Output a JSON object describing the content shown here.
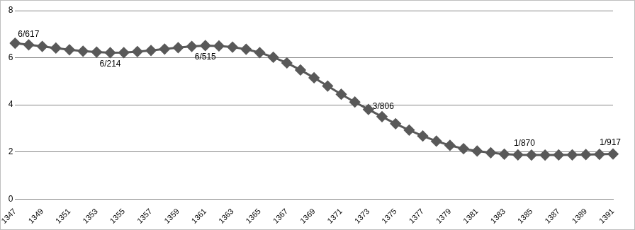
{
  "chart_data": {
    "type": "line",
    "x": [
      1347,
      1348,
      1349,
      1350,
      1351,
      1352,
      1353,
      1354,
      1355,
      1356,
      1357,
      1358,
      1359,
      1360,
      1361,
      1362,
      1363,
      1364,
      1365,
      1366,
      1367,
      1368,
      1369,
      1370,
      1371,
      1372,
      1373,
      1374,
      1375,
      1376,
      1377,
      1378,
      1379,
      1380,
      1381,
      1382,
      1383,
      1384,
      1385,
      1386,
      1387,
      1388,
      1389,
      1390,
      1391
    ],
    "values": [
      6.617,
      6.55,
      6.48,
      6.41,
      6.34,
      6.28,
      6.24,
      6.214,
      6.22,
      6.26,
      6.31,
      6.37,
      6.43,
      6.48,
      6.515,
      6.5,
      6.45,
      6.36,
      6.22,
      6.02,
      5.78,
      5.48,
      5.15,
      4.8,
      4.45,
      4.12,
      3.806,
      3.5,
      3.2,
      2.93,
      2.68,
      2.46,
      2.28,
      2.14,
      2.04,
      1.97,
      1.91,
      1.88,
      1.87,
      1.87,
      1.875,
      1.88,
      1.89,
      1.9,
      1.917
    ],
    "color": "#595959",
    "marker": "diamond",
    "line_style": "solid",
    "xlim": [
      1347,
      1391
    ],
    "xticks": [
      1347,
      1349,
      1351,
      1353,
      1355,
      1357,
      1359,
      1361,
      1363,
      1365,
      1367,
      1369,
      1371,
      1373,
      1375,
      1377,
      1379,
      1381,
      1383,
      1385,
      1387,
      1389,
      1391
    ],
    "ylim": [
      0,
      8
    ],
    "yticks": [
      0,
      2,
      4,
      6,
      8
    ],
    "grid": true,
    "annotations": [
      {
        "text": "6/617",
        "x": 1347
      },
      {
        "text": "6/214",
        "x": 1354
      },
      {
        "text": "6/515",
        "x": 1361
      },
      {
        "text": "3/806",
        "x": 1373
      },
      {
        "text": "1/870",
        "x": 1385
      },
      {
        "text": "1/917",
        "x": 1391
      }
    ]
  }
}
